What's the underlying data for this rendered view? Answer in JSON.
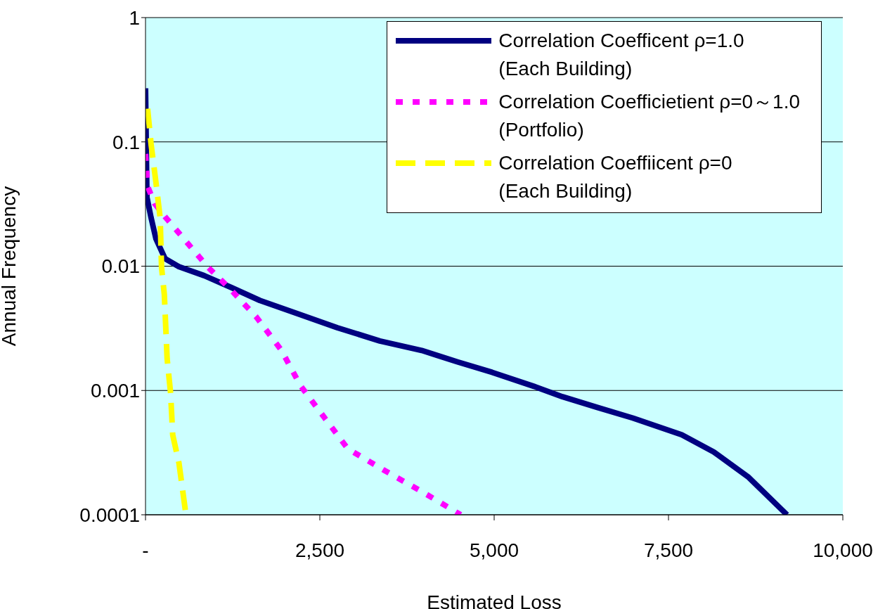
{
  "chart_data": {
    "type": "line",
    "xlabel": "Estimated Loss",
    "ylabel": "Annual Frequency",
    "log": "y",
    "grid": "y",
    "legend": "top right",
    "xlim": [
      0,
      10000
    ],
    "xticks": [
      {
        "value": 0,
        "label": "-"
      },
      {
        "value": 2500,
        "label": "2,500"
      },
      {
        "value": 5000,
        "label": "5,000"
      },
      {
        "value": 7500,
        "label": "7,500"
      },
      {
        "value": 10000,
        "label": "10,000"
      }
    ],
    "ylim": [
      0.0001,
      1
    ],
    "yticks": [
      0.0001,
      0.001,
      0.01,
      0.1,
      1
    ],
    "series": [
      {
        "name": "Correlation Coefficent ρ=1.0\n(Each Building)",
        "color": "#000080",
        "line_style": "solid",
        "x": [
          0,
          10,
          20,
          80,
          150,
          280,
          480,
          840,
          1240,
          1640,
          2150,
          2750,
          3360,
          3960,
          4470,
          4970,
          5570,
          5980,
          6480,
          6990,
          7690,
          8150,
          8650,
          9200
        ],
        "values": [
          0.27,
          0.1,
          0.036,
          0.0245,
          0.0166,
          0.0115,
          0.0099,
          0.0084,
          0.0067,
          0.0053,
          0.0042,
          0.0032,
          0.0025,
          0.0021,
          0.0017,
          0.0014,
          0.00108,
          0.00089,
          0.00073,
          0.0006,
          0.00044,
          0.00032,
          0.0002,
          0.0001
        ]
      },
      {
        "name": "Correlation Coefficietient ρ=0～1.0\n(Portfolio)",
        "color": "#ff00ff",
        "line_style": "dotted",
        "x": [
          0,
          30,
          130,
          280,
          550,
          890,
          1220,
          1590,
          1950,
          2220,
          2570,
          2900,
          3410,
          3960,
          4520
        ],
        "values": [
          0.08,
          0.044,
          0.032,
          0.025,
          0.0166,
          0.0099,
          0.0065,
          0.0039,
          0.0021,
          0.0011,
          0.0006,
          0.00034,
          0.00023,
          0.000154,
          0.0001
        ]
      },
      {
        "name": "Correlation Coeffiicent ρ=0\n(Each Building)",
        "color": "#ffff00",
        "line_style": "dashed",
        "x": [
          30,
          80,
          150,
          210,
          230,
          270,
          310,
          360,
          390,
          480,
          580
        ],
        "values": [
          0.185,
          0.096,
          0.047,
          0.0245,
          0.0098,
          0.0059,
          0.0018,
          0.00095,
          0.00044,
          0.00026,
          0.0001
        ]
      }
    ]
  }
}
